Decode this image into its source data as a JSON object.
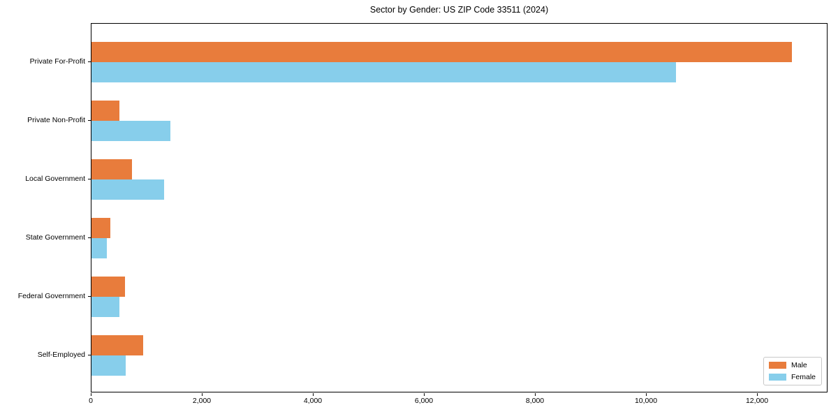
{
  "chart_data": {
    "type": "bar",
    "orientation": "horizontal",
    "title": "Sector by Gender: US ZIP Code 33511 (2024)",
    "xlabel": "",
    "ylabel": "",
    "categories": [
      "Private For-Profit",
      "Private Non-Profit",
      "Local Government",
      "State Government",
      "Federal Government",
      "Self-Employed"
    ],
    "series": [
      {
        "name": "Male",
        "color": "#e87c3c",
        "values": [
          12640,
          510,
          730,
          340,
          610,
          930
        ]
      },
      {
        "name": "Female",
        "color": "#87ceeb",
        "values": [
          10550,
          1430,
          1310,
          280,
          500,
          620
        ]
      }
    ],
    "xlim": [
      0,
      13270
    ],
    "x_ticks": [
      0,
      2000,
      4000,
      6000,
      8000,
      10000,
      12000
    ],
    "x_tick_labels": [
      "0",
      "2,000",
      "4,000",
      "6,000",
      "8,000",
      "10,000",
      "12,000"
    ],
    "grid": false,
    "legend_position": "lower right",
    "plot_border_color": "#000000"
  }
}
